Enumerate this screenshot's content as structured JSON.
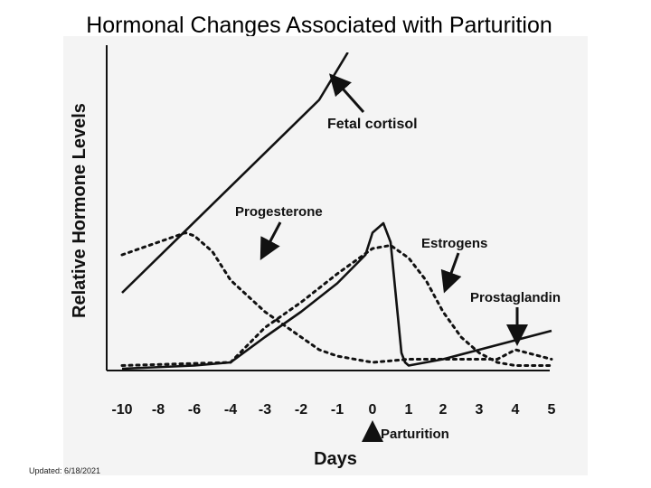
{
  "slide": {
    "title": "Hormonal Changes Associated with Parturition",
    "footer": "Updated: 6/18/2021"
  },
  "chart_data": {
    "type": "line",
    "xlabel": "Days",
    "ylabel": "Relative Hormone Levels",
    "x_ticks": [
      "-10",
      "-8",
      "-6",
      "-4",
      "-3",
      "-2",
      "-1",
      "0",
      "1",
      "2",
      "3",
      "4",
      "5"
    ],
    "xlim": [
      -10,
      5
    ],
    "ylim": [
      0,
      100
    ],
    "annotation": "Parturition",
    "series": [
      {
        "name": "Fetal cortisol",
        "style": "solid",
        "x": [
          -10,
          -1.5,
          -0.7
        ],
        "y": [
          24,
          85,
          100
        ]
      },
      {
        "name": "Progesterone",
        "style": "dotted",
        "x": [
          -10,
          -8,
          -6.5,
          -6,
          -5,
          -4,
          -3,
          -2,
          -1.5,
          -1,
          0,
          1,
          2,
          2.5,
          3,
          3.5,
          4,
          5
        ],
        "y": [
          36,
          40,
          43,
          42,
          37,
          28,
          18,
          10,
          6,
          4,
          2,
          3,
          3,
          3,
          3,
          3,
          6,
          3
        ]
      },
      {
        "name": "Estrogens",
        "style": "dotted",
        "x": [
          -10,
          -4,
          -3,
          -2,
          -1,
          0,
          0.5,
          1,
          1.5,
          2,
          2.5,
          3,
          3.5,
          4,
          5
        ],
        "y": [
          1,
          2,
          13,
          21,
          30,
          38,
          39,
          35,
          28,
          18,
          10,
          5,
          2,
          1,
          1
        ]
      },
      {
        "name": "Prostaglandin",
        "style": "solid",
        "x": [
          -10,
          -6,
          -4,
          -3,
          -2,
          -1,
          -0.2,
          0,
          0.3,
          0.5,
          0.8,
          0.9,
          1,
          1.5,
          2,
          3,
          4,
          5
        ],
        "y": [
          0,
          1,
          2,
          10,
          18,
          27,
          36,
          43,
          46,
          40,
          5,
          2,
          1,
          2,
          3,
          6,
          9,
          12
        ]
      }
    ]
  }
}
